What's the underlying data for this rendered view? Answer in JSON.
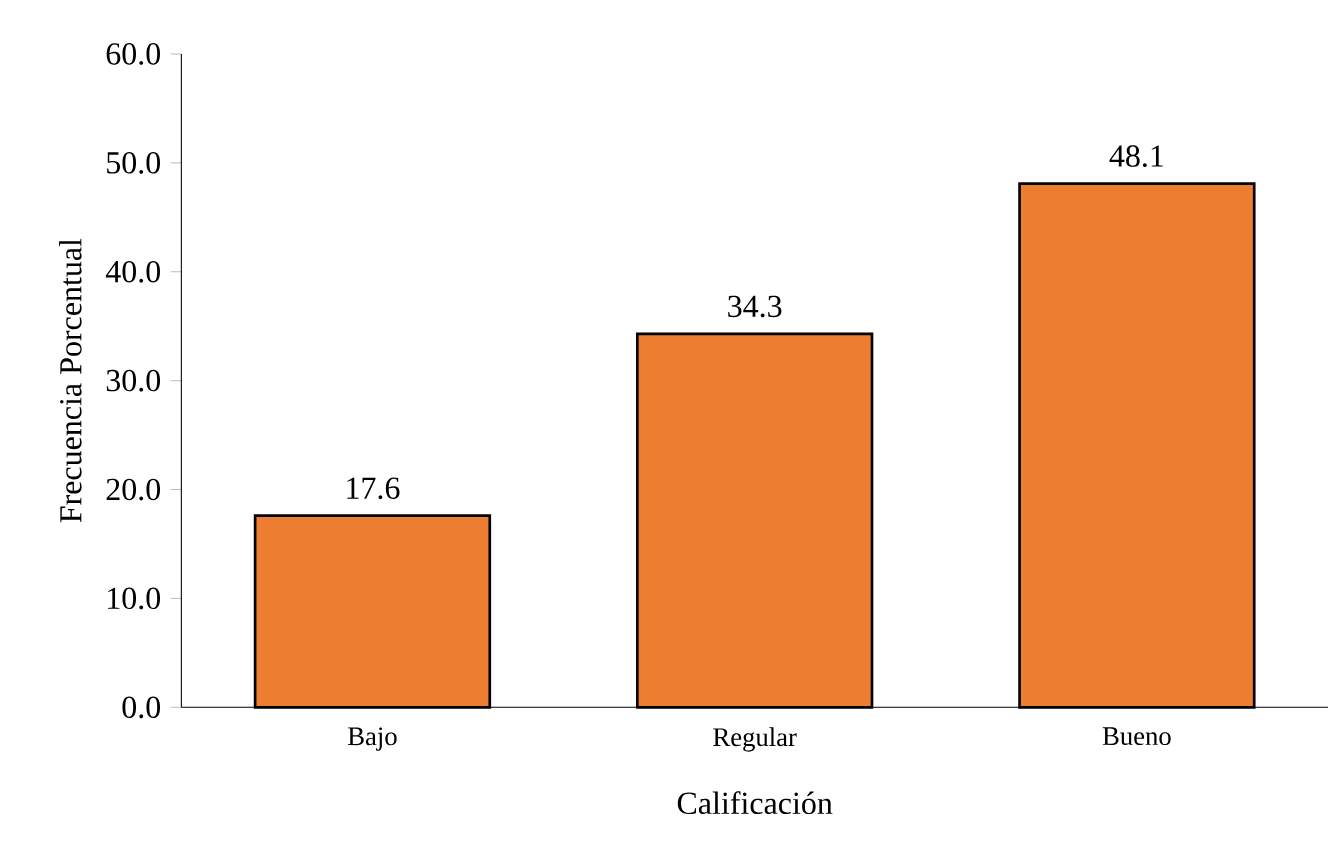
{
  "chart_data": {
    "type": "bar",
    "xlabel": "Calificación",
    "ylabel": "Frecuencia Porcentual",
    "categories": [
      "Bajo",
      "Regular",
      "Bueno"
    ],
    "values": [
      17.6,
      34.3,
      48.1
    ],
    "value_labels": [
      "17.6",
      "34.3",
      "48.1"
    ],
    "color": "#ed7d31",
    "ylim": [
      0,
      60
    ],
    "yticks": [
      {
        "value": 0,
        "label": "0.0"
      },
      {
        "value": 10,
        "label": "10.0"
      },
      {
        "value": 20,
        "label": "20.0"
      },
      {
        "value": 30,
        "label": "30.0"
      },
      {
        "value": 40,
        "label": "40.0"
      },
      {
        "value": 50,
        "label": "50.0"
      },
      {
        "value": 60,
        "label": "60.0"
      }
    ],
    "grid": false
  }
}
